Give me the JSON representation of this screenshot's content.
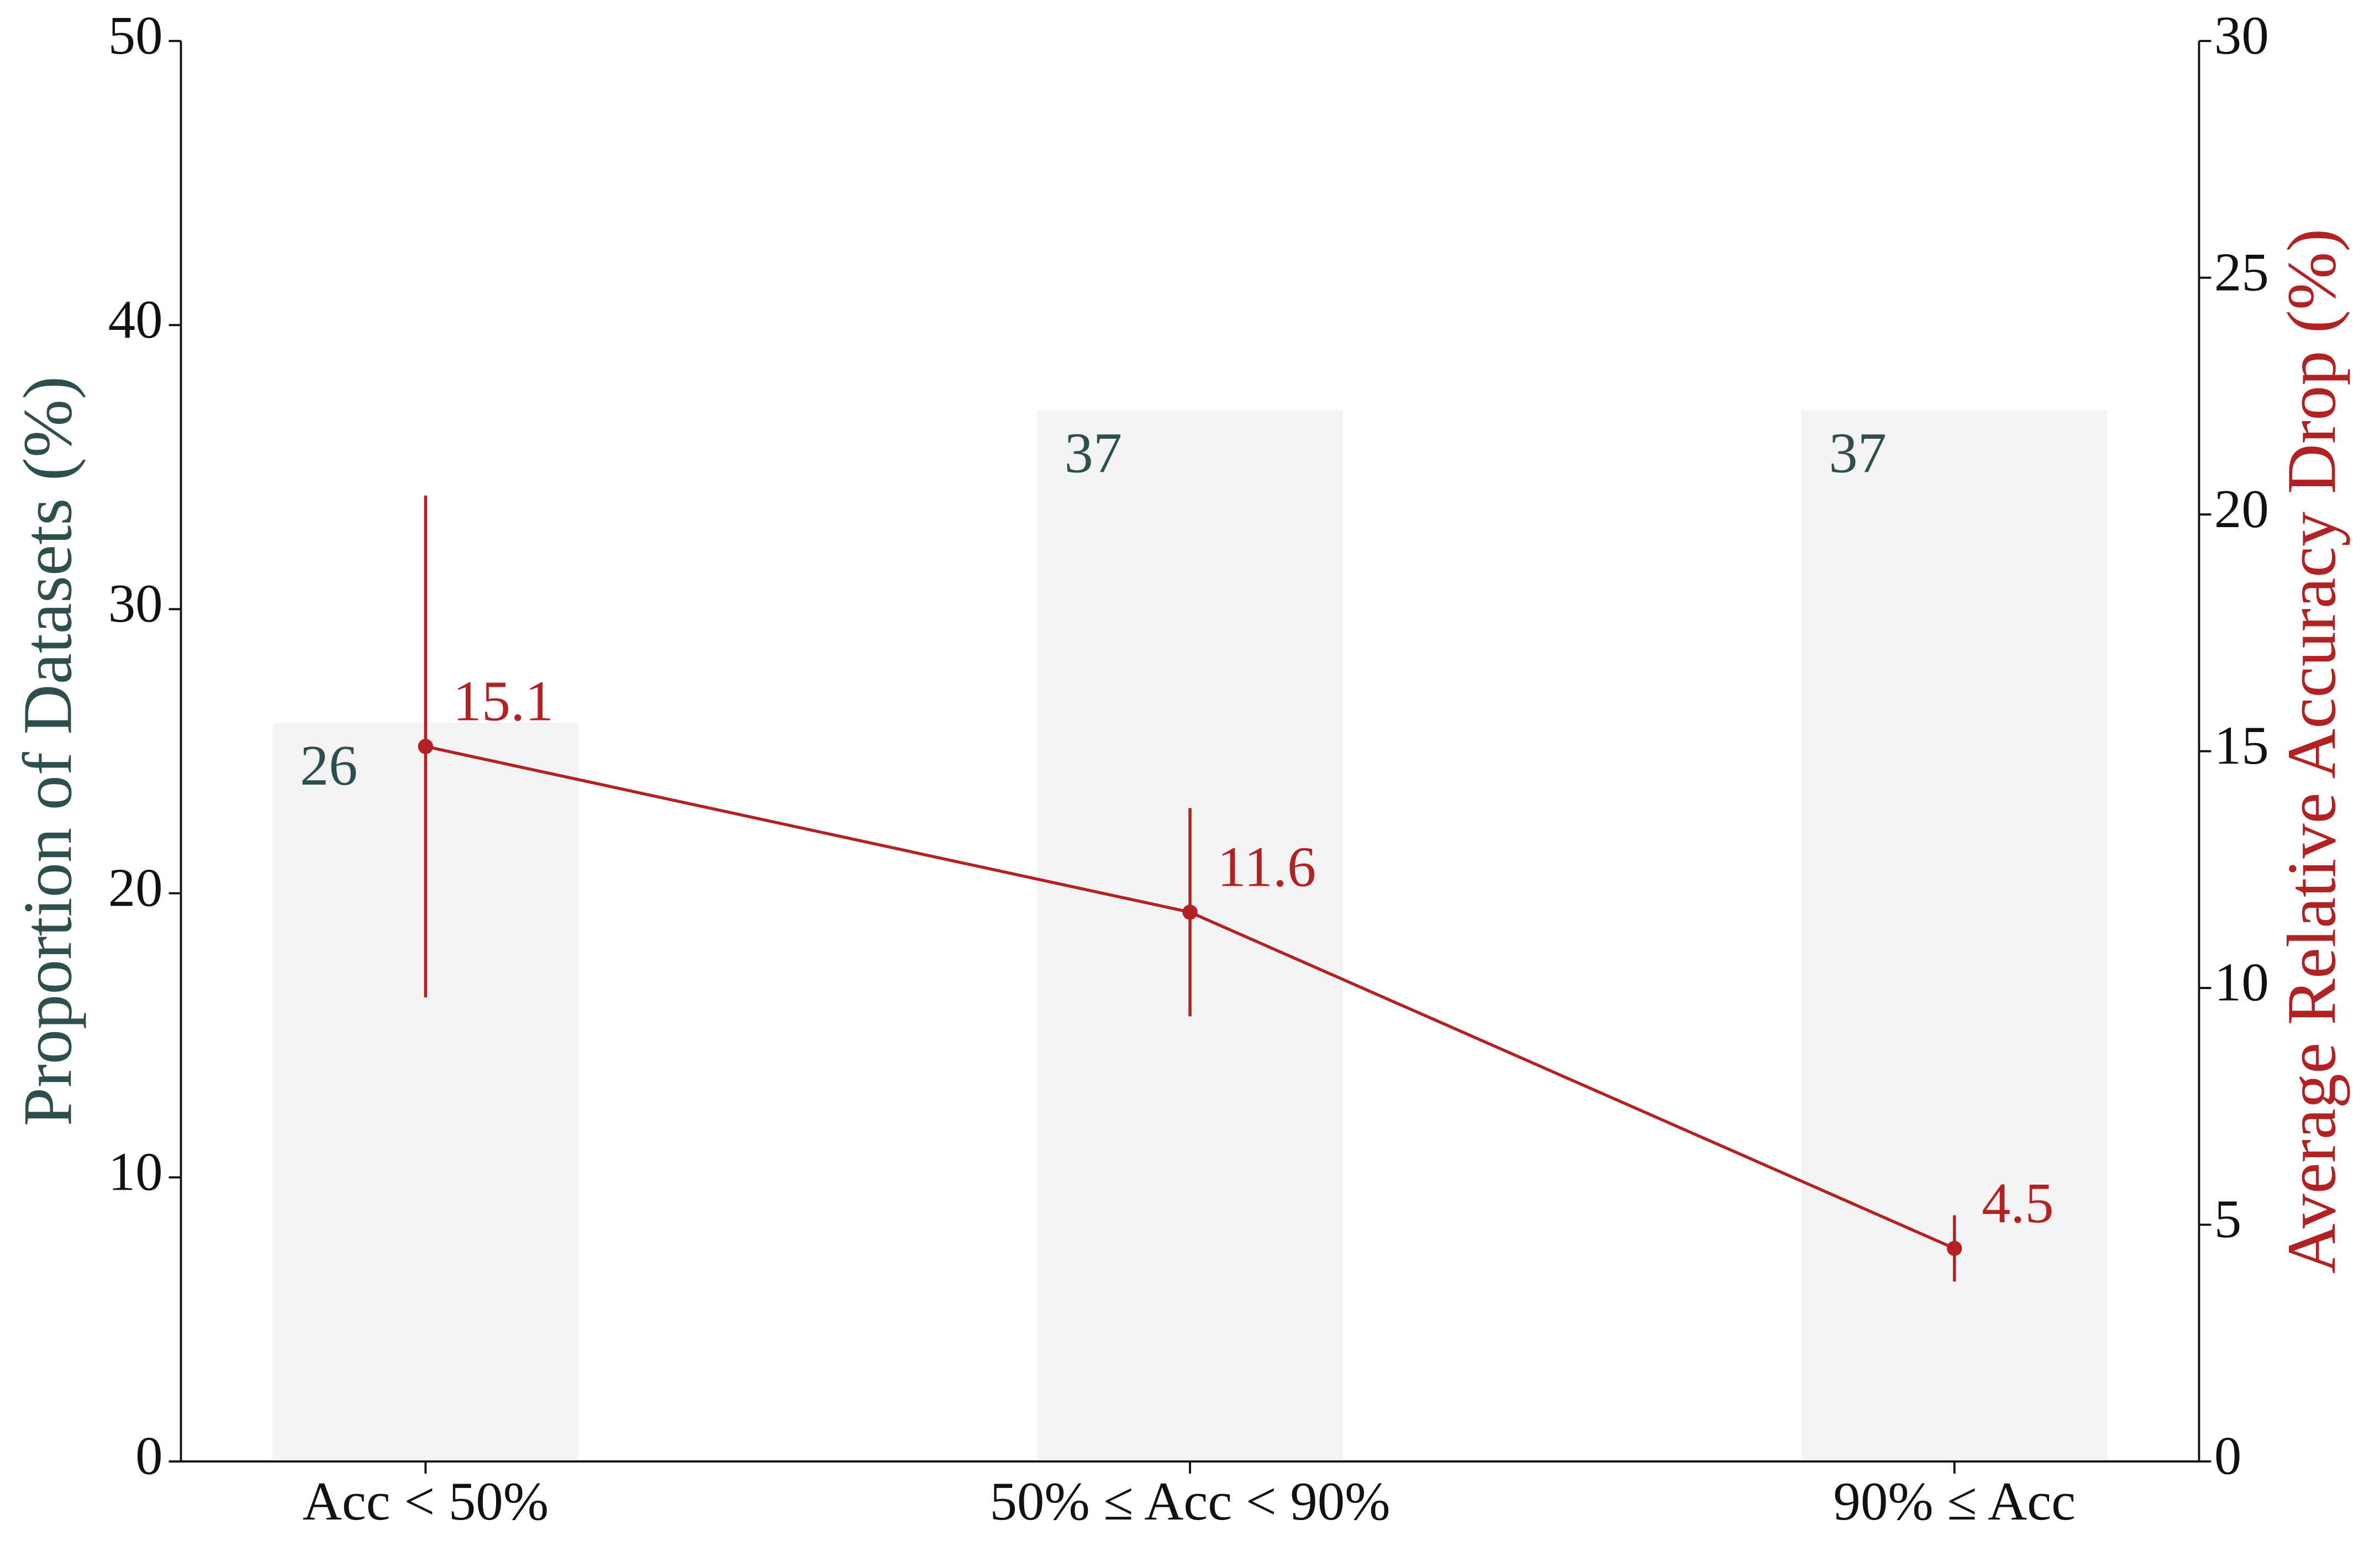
{
  "chart_data": {
    "type": "bar",
    "categories": [
      "Acc < 50%",
      "50% ≤ Acc < 90%",
      "90% ≤ Acc"
    ],
    "ylabel": "Proportion of Datasets (%)",
    "y2label": "Average Relative Accuracy Drop (%)",
    "ylim": [
      0,
      50
    ],
    "yticks": [
      0,
      10,
      20,
      30,
      40,
      50
    ],
    "y2lim": [
      0,
      30
    ],
    "y2ticks": [
      0,
      5,
      10,
      15,
      20,
      25,
      30
    ],
    "series": [
      {
        "type": "bar",
        "color": "#f3f3f3",
        "label_color": "#2f4f4f",
        "values": [
          26,
          37,
          37
        ]
      },
      {
        "type": "line",
        "axis": "y2",
        "color": "#b22222",
        "values": [
          15.1,
          11.6,
          4.5
        ],
        "errors": [
          5.3,
          2.2,
          0.7
        ]
      }
    ]
  }
}
